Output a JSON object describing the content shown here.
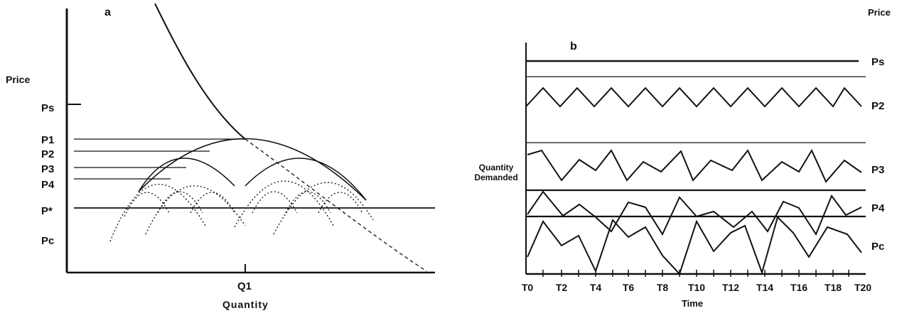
{
  "panel_a": {
    "letter": "a",
    "y_axis_label": "Price",
    "price_labels": [
      "Ps",
      "P1",
      "P2",
      "P3",
      "P4",
      "P*",
      "Pc"
    ],
    "x_tick_label": "Q1",
    "x_axis_label": "Quantity"
  },
  "panel_b": {
    "letter": "b",
    "right_header": "Price",
    "y_axis_label_line1": "Quantity",
    "y_axis_label_line2": "Demanded",
    "row_labels": [
      "Ps",
      "P2",
      "P3",
      "P4",
      "Pc"
    ],
    "x_tick_labels": [
      "T0",
      "T2",
      "T4",
      "T6",
      "T8",
      "T10",
      "T12",
      "T14",
      "T16",
      "T18",
      "T20"
    ],
    "x_axis_label": "Time"
  }
}
